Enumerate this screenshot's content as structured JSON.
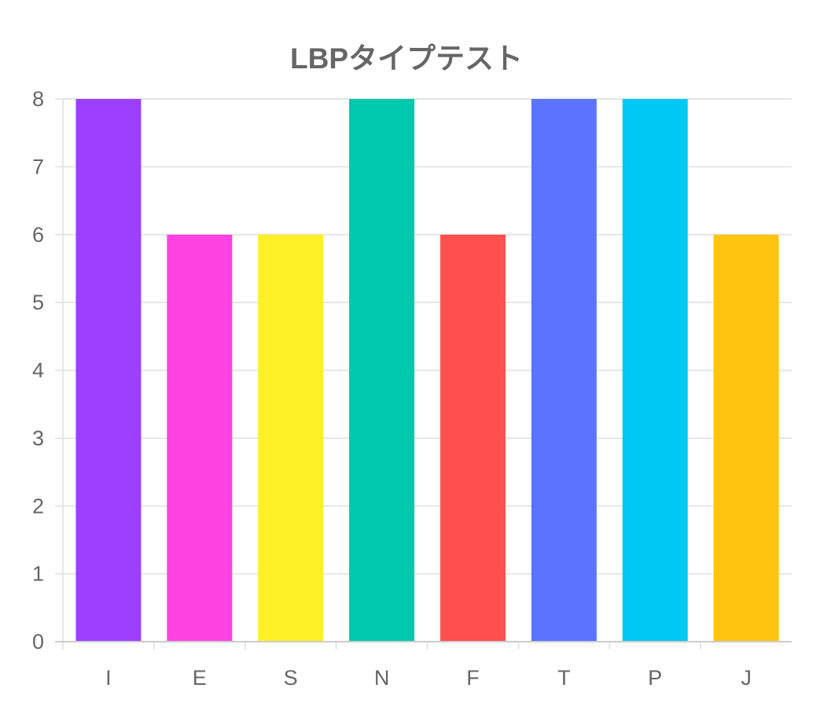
{
  "chart_data": {
    "type": "bar",
    "title": "LBPタイプテスト",
    "categories": [
      "I",
      "E",
      "S",
      "N",
      "F",
      "T",
      "P",
      "J"
    ],
    "values": [
      8,
      6,
      6,
      8,
      6,
      8,
      8,
      6
    ],
    "colors": [
      "#9d3fff",
      "#ff42e2",
      "#ffef27",
      "#00c9ae",
      "#ff4f4f",
      "#5a74ff",
      "#00c8f5",
      "#ffc410"
    ],
    "ylim": [
      0,
      8
    ],
    "yticks": [
      "0",
      "1",
      "2",
      "3",
      "4",
      "5",
      "6",
      "7",
      "8"
    ],
    "grid": true,
    "legend": "none"
  },
  "style": {
    "grid_color": "#e6e6e6",
    "axis_color": "#cccccc",
    "text_color": "#666666"
  }
}
